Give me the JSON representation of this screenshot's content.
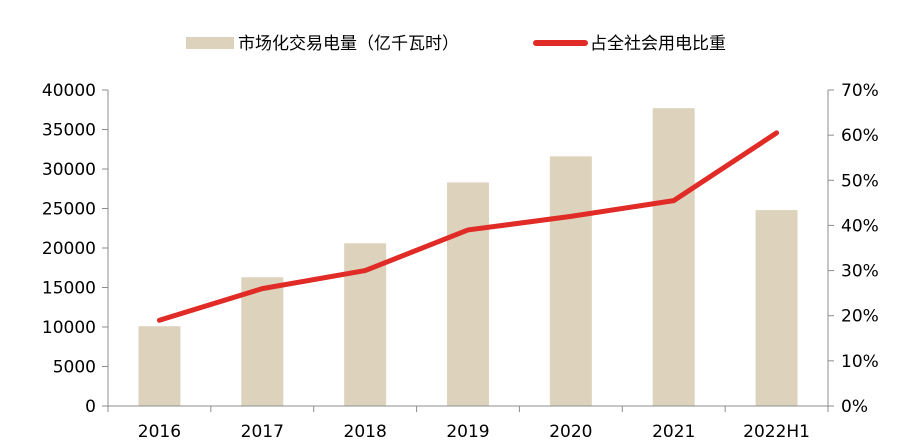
{
  "chart_data": {
    "type": "bar+line",
    "categories": [
      "2016",
      "2017",
      "2018",
      "2019",
      "2020",
      "2021",
      "2022H1"
    ],
    "series": [
      {
        "name": "市场化交易电量（亿千瓦时）",
        "type": "bar",
        "axis": "left",
        "color": "#ddd3bd",
        "values": [
          10100,
          16300,
          20600,
          28300,
          31600,
          37700,
          24800
        ]
      },
      {
        "name": "占全社会用电比重",
        "type": "line",
        "axis": "right",
        "color": "#e02b27",
        "values": [
          19,
          26,
          30,
          39,
          42,
          45.5,
          60.5
        ]
      }
    ],
    "y_left": {
      "range": [
        0,
        40000
      ],
      "ticks": [
        "0",
        "5000",
        "10000",
        "15000",
        "20000",
        "25000",
        "30000",
        "35000",
        "40000"
      ]
    },
    "y_right": {
      "range": [
        0,
        70
      ],
      "ticks": [
        "0%",
        "10%",
        "20%",
        "30%",
        "40%",
        "50%",
        "60%",
        "70%"
      ]
    },
    "legend_position": "top-center",
    "grid": false
  }
}
